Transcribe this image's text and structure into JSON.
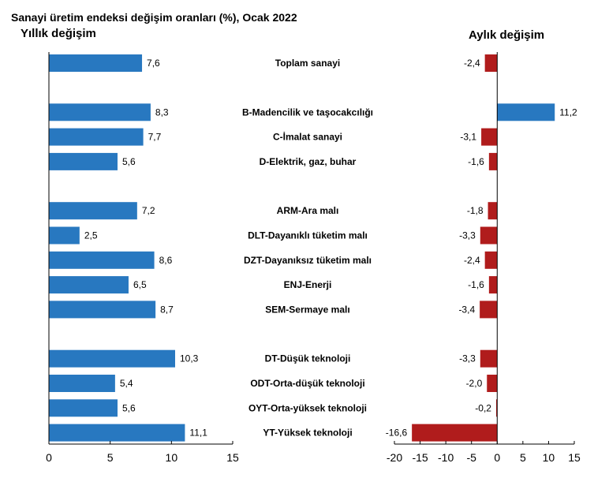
{
  "chart_data": [
    {
      "type": "bar",
      "orientation": "horizontal",
      "title": "Sanayi üretim endeksi değişim oranları (%), Ocak 2022",
      "subtitle": "Yıllık değişim",
      "categories": [
        "Toplam sanayi",
        "B-Madencilik ve taşocakcılığı",
        "C-İmalat sanayi",
        "D-Elektrik, gaz, buhar",
        "ARM-Ara malı",
        "DLT-Dayanıklı tüketim malı",
        "DZT-Dayanıksız tüketim malı",
        "ENJ-Enerji",
        "SEM-Sermaye malı",
        "DT-Düşük teknoloji",
        "ODT-Orta-düşük teknoloji",
        "OYT-Orta-yüksek teknoloji",
        "YT-Yüksek teknoloji"
      ],
      "values": [
        7.6,
        8.3,
        7.7,
        5.6,
        7.2,
        2.5,
        8.6,
        6.5,
        8.7,
        10.3,
        5.4,
        5.6,
        11.1
      ],
      "value_labels": [
        "7,6",
        "8,3",
        "7,7",
        "5,6",
        "7,2",
        "2,5",
        "8,6",
        "6,5",
        "8,7",
        "10,3",
        "5,4",
        "5,6",
        "11,1"
      ],
      "xlim": [
        0,
        15
      ],
      "xticks": [
        0,
        5,
        10,
        15
      ],
      "xtick_labels": [
        "0",
        "5",
        "10",
        "15"
      ],
      "color": "#2878c0",
      "grid": false
    },
    {
      "type": "bar",
      "orientation": "horizontal",
      "subtitle": "Aylık değişim",
      "categories": [
        "Toplam sanayi",
        "B-Madencilik ve taşocakcılığı",
        "C-İmalat sanayi",
        "D-Elektrik, gaz, buhar",
        "ARM-Ara malı",
        "DLT-Dayanıklı tüketim malı",
        "DZT-Dayanıksız tüketim malı",
        "ENJ-Enerji",
        "SEM-Sermaye malı",
        "DT-Düşük teknoloji",
        "ODT-Orta-düşük teknoloji",
        "OYT-Orta-yüksek teknoloji",
        "YT-Yüksek teknoloji"
      ],
      "values": [
        -2.4,
        11.2,
        -3.1,
        -1.6,
        -1.8,
        -3.3,
        -2.4,
        -1.6,
        -3.4,
        -3.3,
        -2.0,
        -0.2,
        -16.6
      ],
      "value_labels": [
        "-2,4",
        "11,2",
        "-3,1",
        "-1,6",
        "-1,8",
        "-3,3",
        "-2,4",
        "-1,6",
        "-3,4",
        "-3,3",
        "-2,0",
        "-0,2",
        "-16,6"
      ],
      "xlim": [
        -20,
        15
      ],
      "xticks": [
        -20,
        -15,
        -10,
        -5,
        0,
        5,
        10,
        15
      ],
      "xtick_labels": [
        "-20",
        "-15",
        "-10",
        "-5",
        "0",
        "5",
        "10",
        "15"
      ],
      "positive_color": "#2878c0",
      "negative_color": "#b01c1c",
      "grid": false
    }
  ],
  "groups": [
    [
      0
    ],
    [
      1,
      2,
      3
    ],
    [
      4,
      5,
      6,
      7,
      8
    ],
    [
      9,
      10,
      11,
      12
    ]
  ]
}
